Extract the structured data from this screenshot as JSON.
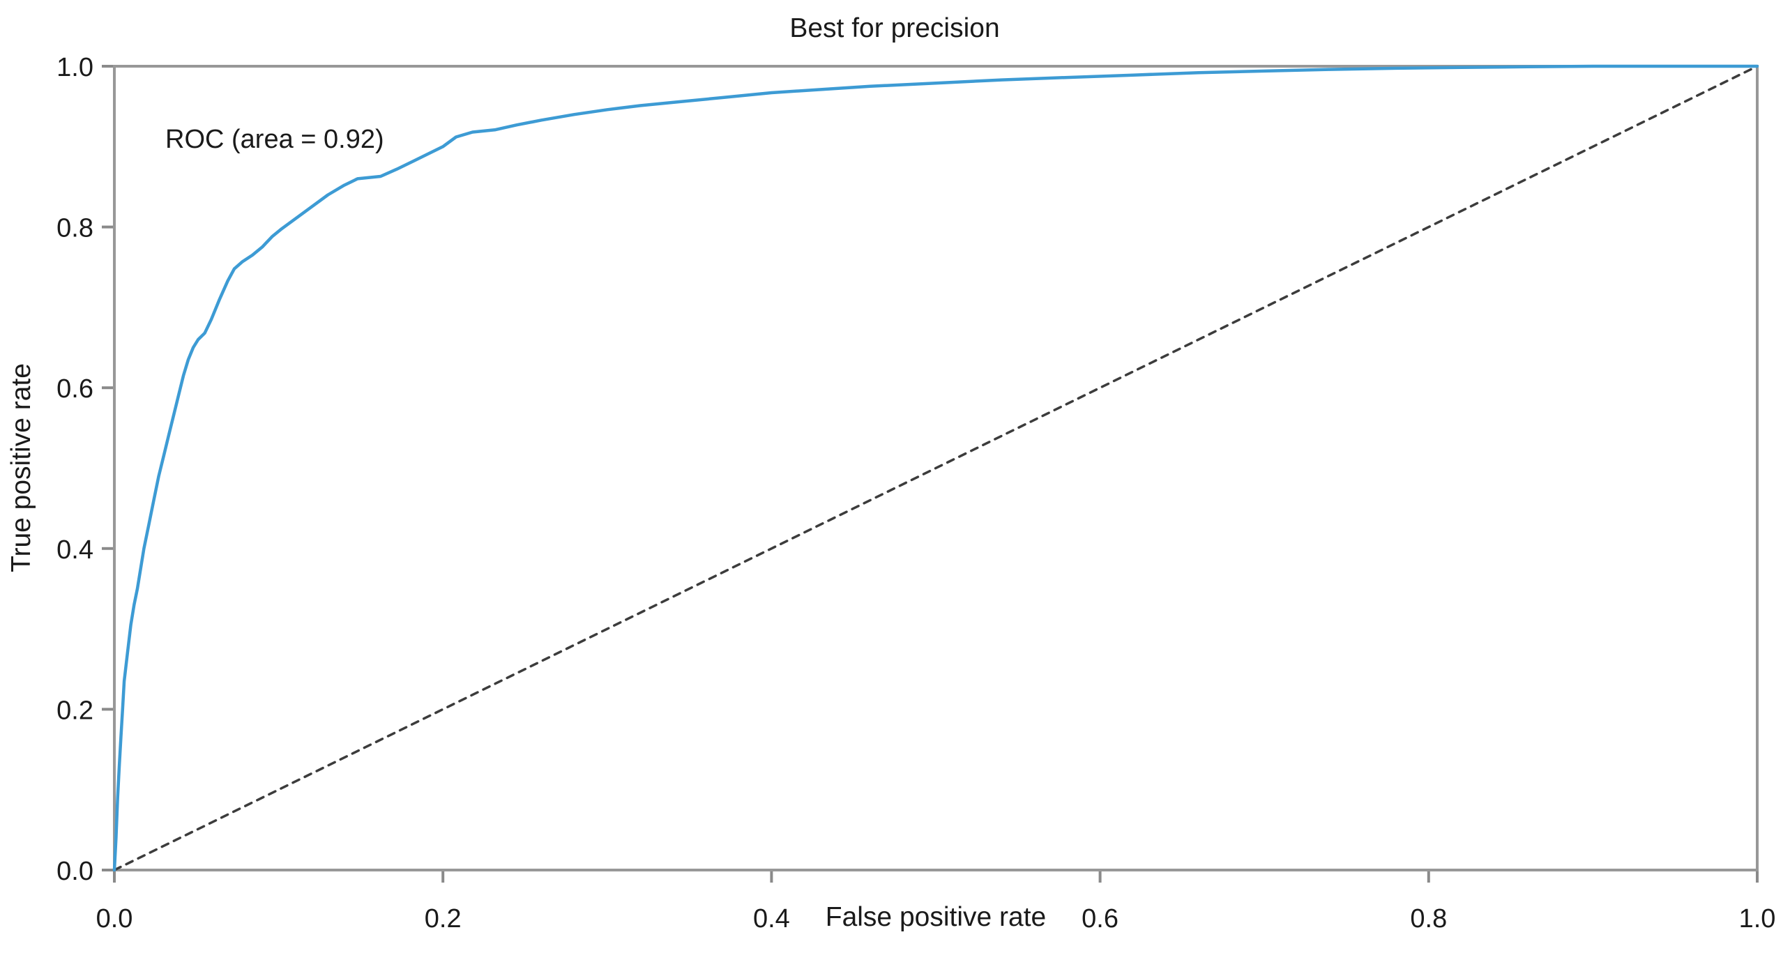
{
  "chart_data": {
    "type": "line",
    "title": "Best for precision",
    "xlabel": "False positive rate",
    "ylabel": "True positive rate",
    "annotation": "ROC (area = 0.92)",
    "xlim": [
      0.0,
      1.0
    ],
    "ylim": [
      0.0,
      1.0
    ],
    "grid": false,
    "legend_position": "none (inline text annotation at upper left)",
    "x_tick_labels": [
      "0.0",
      "0.2",
      "0.4",
      "0.6",
      "0.8",
      "1.0"
    ],
    "y_tick_labels": [
      "0.0",
      "0.2",
      "0.4",
      "0.6",
      "0.8",
      "1.0"
    ],
    "series": [
      {
        "name": "ROC curve (area = 0.92)",
        "style": "solid",
        "color": "#3d9bd4",
        "x": [
          0.0,
          0.001,
          0.002,
          0.003,
          0.004,
          0.005,
          0.006,
          0.008,
          0.01,
          0.012,
          0.014,
          0.016,
          0.018,
          0.021,
          0.024,
          0.027,
          0.03,
          0.033,
          0.036,
          0.039,
          0.042,
          0.045,
          0.048,
          0.051,
          0.055,
          0.059,
          0.064,
          0.069,
          0.073,
          0.078,
          0.084,
          0.09,
          0.096,
          0.102,
          0.11,
          0.12,
          0.13,
          0.14,
          0.148,
          0.162,
          0.172,
          0.182,
          0.192,
          0.2,
          0.208,
          0.218,
          0.232,
          0.245,
          0.26,
          0.28,
          0.3,
          0.32,
          0.34,
          0.37,
          0.4,
          0.43,
          0.46,
          0.5,
          0.54,
          0.58,
          0.62,
          0.66,
          0.7,
          0.74,
          0.78,
          0.82,
          0.86,
          0.9,
          1.0
        ],
        "y": [
          0.0,
          0.04,
          0.09,
          0.13,
          0.165,
          0.2,
          0.235,
          0.27,
          0.305,
          0.33,
          0.35,
          0.375,
          0.4,
          0.43,
          0.46,
          0.49,
          0.515,
          0.54,
          0.565,
          0.59,
          0.615,
          0.635,
          0.65,
          0.66,
          0.668,
          0.685,
          0.71,
          0.733,
          0.748,
          0.757,
          0.765,
          0.775,
          0.788,
          0.798,
          0.81,
          0.825,
          0.84,
          0.852,
          0.86,
          0.863,
          0.872,
          0.882,
          0.892,
          0.9,
          0.912,
          0.918,
          0.921,
          0.927,
          0.933,
          0.94,
          0.946,
          0.951,
          0.955,
          0.961,
          0.967,
          0.971,
          0.975,
          0.979,
          0.983,
          0.986,
          0.989,
          0.992,
          0.994,
          0.996,
          0.9975,
          0.9985,
          0.9993,
          1.0,
          1.0
        ]
      },
      {
        "name": "chance diagonal",
        "style": "dashed",
        "color": "#3c3c3c",
        "x": [
          0.0,
          1.0
        ],
        "y": [
          0.0,
          1.0
        ]
      }
    ]
  },
  "colors": {
    "background": "#ffffff",
    "spine": "#989898",
    "tick": "#8a8a8a",
    "text": "#1a1a1a",
    "roc_curve": "#3d9bd4",
    "diagonal": "#3c3c3c"
  }
}
